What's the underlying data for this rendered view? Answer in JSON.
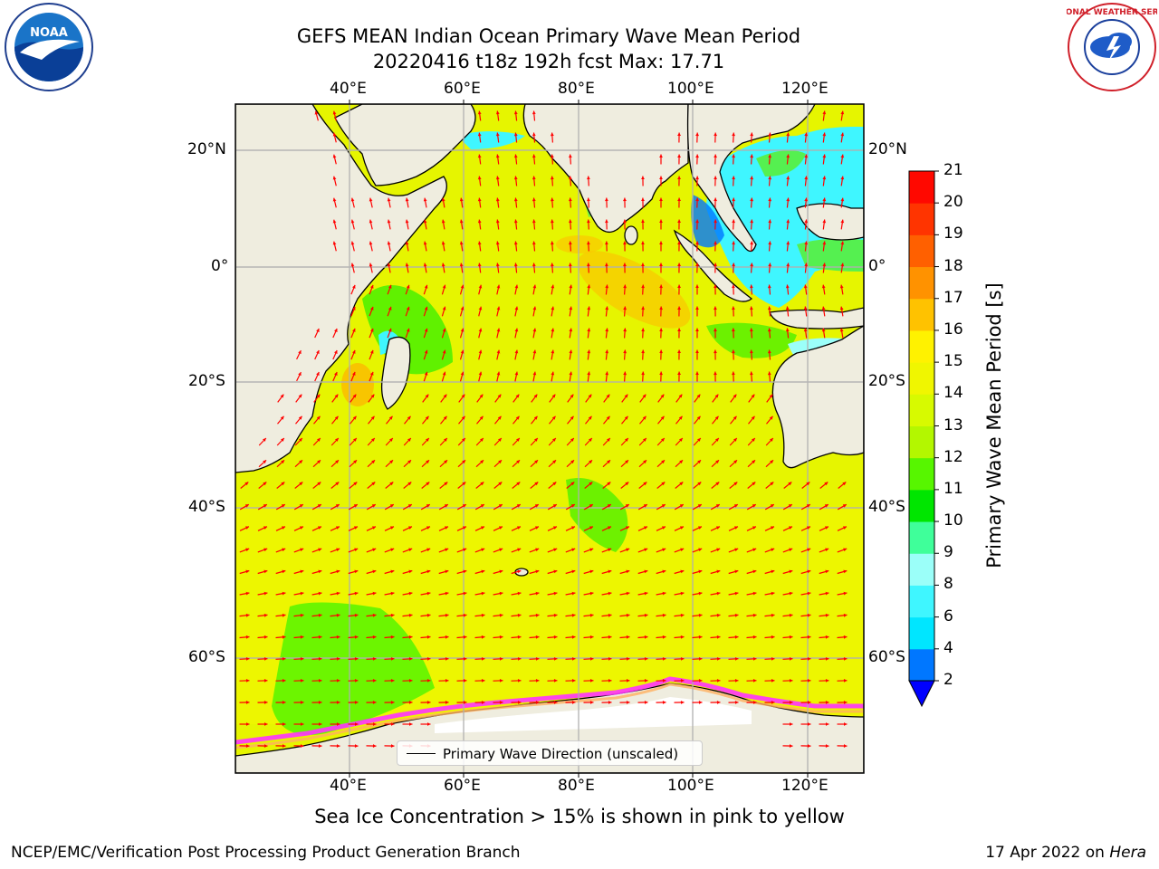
{
  "title": {
    "line1": "GEFS MEAN Indian Ocean Primary Wave Mean Period",
    "line2": "20220416 t18z 192h fcst   Max: 17.71"
  },
  "logos": {
    "left": "noaa-logo",
    "right": "national-weather-service-logo",
    "left_text": "NOAA",
    "right_text": "NATIONAL WEATHER SERVICE"
  },
  "map": {
    "lon_labels": [
      "40°E",
      "60°E",
      "80°E",
      "100°E",
      "120°E"
    ],
    "lat_labels": [
      "20°N",
      "0°",
      "20°S",
      "40°S",
      "60°S"
    ],
    "lon_range": [
      20,
      130
    ],
    "lat_range": [
      -75,
      28
    ],
    "grid": true,
    "land_color": "#efeddf",
    "ocean_dominant_color": "#e6f500",
    "arrow_color": "#ff0000",
    "sea_ice_colors": [
      "#ff33ff",
      "#ffa040",
      "#ffff66"
    ]
  },
  "colorbar": {
    "label": "Primary Wave Mean Period [s]",
    "ticks": [
      "2",
      "4",
      "6",
      "8",
      "9",
      "10",
      "11",
      "12",
      "13",
      "14",
      "15",
      "16",
      "17",
      "18",
      "19",
      "20",
      "21"
    ],
    "colors": [
      "#0077ff",
      "#00e6ff",
      "#3ff6ff",
      "#9bfff9",
      "#3fff9a",
      "#00e600",
      "#57f600",
      "#b3f700",
      "#d7fa00",
      "#f0f600",
      "#fff200",
      "#ffc200",
      "#ff9200",
      "#ff6000",
      "#ff3400",
      "#ff0800"
    ],
    "under_color": "#0000ff"
  },
  "legend": {
    "label": "Primary Wave Direction (unscaled)"
  },
  "caption": "Sea Ice Concentration > 15% is shown in pink to yellow",
  "footer": {
    "left": "NCEP/EMC/Verification Post Processing Product Generation Branch",
    "right_prefix": "17 Apr 2022 on ",
    "right_host": "Hera"
  }
}
